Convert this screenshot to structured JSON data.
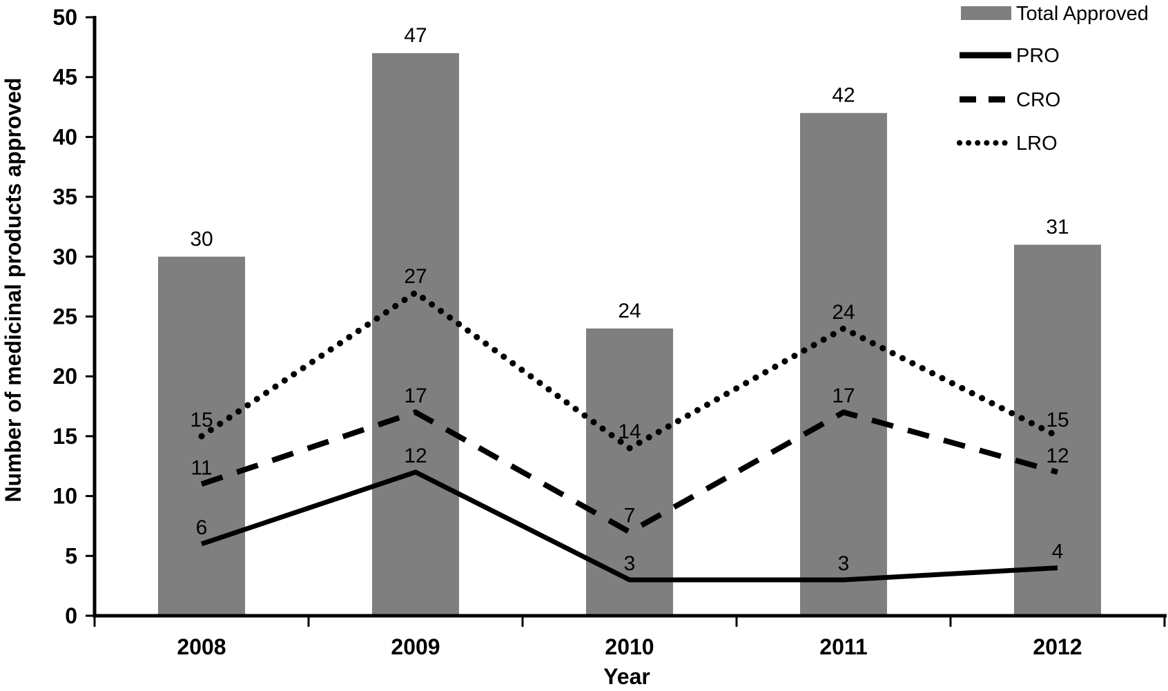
{
  "chart_data": {
    "type": "combo-bar-line",
    "title": "",
    "xlabel": "Year",
    "ylabel": "Number of medicinal products approved",
    "ylim": [
      0,
      50
    ],
    "ytick_step": 5,
    "yticks": [
      0,
      5,
      10,
      15,
      20,
      25,
      30,
      35,
      40,
      45,
      50
    ],
    "categories": [
      "2008",
      "2009",
      "2010",
      "2011",
      "2012"
    ],
    "series": [
      {
        "name": "Total Approved",
        "type": "bar",
        "style": "solid",
        "color": "#7f7f7f",
        "values": [
          30,
          47,
          24,
          42,
          31
        ]
      },
      {
        "name": "PRO",
        "type": "line",
        "style": "solid",
        "color": "#000000",
        "values": [
          6,
          12,
          3,
          3,
          4
        ]
      },
      {
        "name": "CRO",
        "type": "line",
        "style": "dashed",
        "color": "#000000",
        "values": [
          11,
          17,
          7,
          17,
          12
        ]
      },
      {
        "name": "LRO",
        "type": "line",
        "style": "dotted",
        "color": "#000000",
        "values": [
          15,
          27,
          14,
          24,
          15
        ]
      }
    ],
    "legend_position": "top-right",
    "grid": false,
    "data_labels": true,
    "axis_color": "#000000"
  }
}
